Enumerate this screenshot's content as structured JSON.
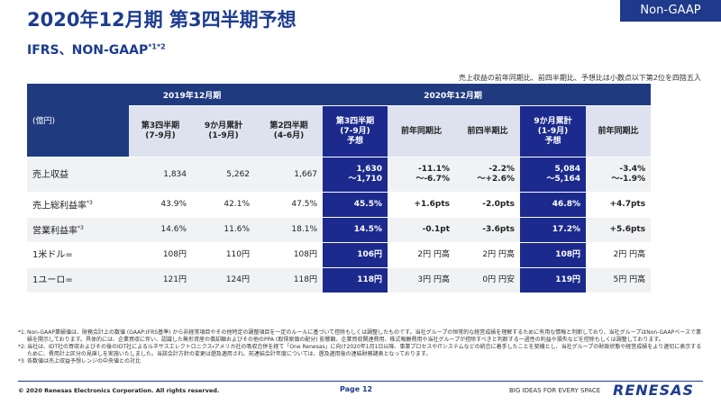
{
  "badge": "Non-GAAP",
  "header": {
    "title": "2020年12月期 第3四半期予想",
    "subtitle": "IFRS、NON-GAAP",
    "subtitle_note": "*1*2"
  },
  "note": "売上収益の前年同期比、前四半期比、予想比は小数点以下第2位を四捨五入",
  "table": {
    "unit": "(億円)",
    "groups": [
      "2019年12月期",
      "2020年12月期"
    ],
    "columns": [
      "第3四半期\n(7-9月)",
      "9か月累計\n(1-9月)",
      "第2四半期\n(4-6月)",
      "第3四半期\n(7-9月)\n予想",
      "前年同期比",
      "前四半期比",
      "9か月累計\n(1-9月)\n予想",
      "前年同期比"
    ],
    "rows": [
      {
        "label": "売上収益",
        "values": [
          "1,834",
          "5,262",
          "1,667",
          "1,630\n〜1,710",
          "-11.1%\n〜-6.7%",
          "-2.2%\n〜+2.6%",
          "5,084\n〜5,164",
          "-3.4%\n〜-1.9%"
        ]
      },
      {
        "label": "売上総利益率",
        "note": "*3",
        "values": [
          "43.9%",
          "42.1%",
          "47.5%",
          "45.5%",
          "+1.6pts",
          "-2.0pts",
          "46.8%",
          "+4.7pts"
        ]
      },
      {
        "label": "営業利益率",
        "note": "*3",
        "values": [
          "14.6%",
          "11.6%",
          "18.1%",
          "14.5%",
          "-0.1pt",
          "-3.6pts",
          "17.2%",
          "+5.6pts"
        ]
      },
      {
        "label": "1米ドル=",
        "values": [
          "108円",
          "110円",
          "108円",
          "106円",
          "2円 円高",
          "2円 円高",
          "108円",
          "2円 円高"
        ]
      },
      {
        "label": "1ユーロ=",
        "values": [
          "121円",
          "124円",
          "118円",
          "118円",
          "3円 円高",
          "0円 円安",
          "119円",
          "5円 円高"
        ]
      }
    ]
  },
  "footnotes": [
    {
      "mark": "*1:",
      "text": "Non-GAAP業績値は、財務会計上の数値 (GAAP:IFRS基準) から非経常項目やその他特定の調整項目を一定のルールに基づいて控除もしくは調整したものです。当社グループの恒常的な経営成績を理解するために有用な情報と判断しており、当社グループはNon-GAAPベースで業績を開示しております。具体的には、企業買収に伴い、認識した無形資産の償却額およびその他のPPA (取得原価の配分) 影響額、企業買収関連費用、株式報酬費用や当社グループが控除すべきと判断する一過性の利益や損失などを控除もしくは調整しております。"
    },
    {
      "mark": "*2:",
      "text": "当社は、IDT社の買収およびその後のIDT社によるルネサスエレクトロニクス・アメリカ社の吸収合併を経て「One Renesas」に向け2020年1月1日以降、事業プロセスやITシステムなどの統合に着手したことを契機とし、当社グループの財政状態や経営成績をより適切に表示するために、費用計上区分の見直しを実施いたしました。当該会計方針の変更は遡及適用され、前連結会計年度については、遡及適用後の連結財務諸表となっております。"
    },
    {
      "mark": "*3",
      "text": "各数値は売上収益予想レンジの中央値との対比"
    }
  ],
  "footer": {
    "copyright": "© 2020 Renesas Electronics Corporation. All rights reserved.",
    "page": "Page 12",
    "tagline": "BIG IDEAS FOR EVERY SPACE",
    "logo": "RENESAS"
  }
}
